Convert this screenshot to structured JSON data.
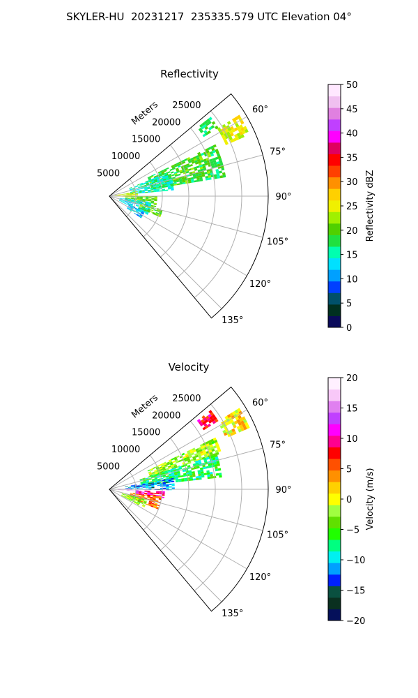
{
  "figure": {
    "title": "SKYLER-HU  20231217  235335.579 UTC Elevation 04°"
  },
  "chart_data": [
    {
      "type": "heatmap",
      "projection": "polar-sector",
      "title": "Reflectivity",
      "radial_label": "Meters",
      "radial_ticks": [
        5000,
        10000,
        15000,
        20000,
        25000
      ],
      "radial_tick_labels": [
        "5000",
        "10000",
        "15000",
        "20000",
        "25000"
      ],
      "radial_range": [
        0,
        30000
      ],
      "angle_range_deg": [
        50,
        140
      ],
      "angle_ticks": [
        60,
        75,
        90,
        105,
        120,
        135
      ],
      "angle_tick_labels": [
        "60°",
        "75°",
        "90°",
        "105°",
        "120°",
        "135°"
      ],
      "grid": true,
      "colorbar": {
        "label": "Reflectivity dBZ",
        "range": [
          0,
          50
        ],
        "ticks": [
          0,
          5,
          10,
          15,
          20,
          25,
          30,
          35,
          40,
          45,
          50
        ],
        "tick_labels": [
          "0",
          "5",
          "10",
          "15",
          "20",
          "25",
          "30",
          "35",
          "40",
          "45",
          "50"
        ]
      },
      "echo_regions": [
        {
          "az": [
            52,
            58
          ],
          "r": [
            21000,
            24000
          ],
          "value": 18
        },
        {
          "az": [
            58,
            66
          ],
          "r": [
            24000,
            28500
          ],
          "value": 25
        },
        {
          "az": [
            64,
            80
          ],
          "r": [
            8000,
            22000
          ],
          "value": 19
        },
        {
          "az": [
            68,
            84
          ],
          "r": [
            4000,
            12000
          ],
          "value": 15
        },
        {
          "az": [
            80,
            92
          ],
          "r": [
            1000,
            5000
          ],
          "value": 24
        },
        {
          "az": [
            90,
            104
          ],
          "r": [
            3000,
            9000
          ],
          "value": 21
        },
        {
          "az": [
            98,
            115
          ],
          "r": [
            2000,
            8000
          ],
          "value": 13
        },
        {
          "az": [
            104,
            112
          ],
          "r": [
            6000,
            10000
          ],
          "value": 20
        },
        {
          "az": [
            114,
            124
          ],
          "r": [
            4000,
            7000
          ],
          "value": 12
        }
      ]
    },
    {
      "type": "heatmap",
      "projection": "polar-sector",
      "title": "Velocity",
      "radial_label": "Meters",
      "radial_ticks": [
        5000,
        10000,
        15000,
        20000,
        25000
      ],
      "radial_tick_labels": [
        "5000",
        "10000",
        "15000",
        "20000",
        "25000"
      ],
      "radial_range": [
        0,
        30000
      ],
      "angle_range_deg": [
        50,
        140
      ],
      "angle_ticks": [
        60,
        75,
        90,
        105,
        120,
        135
      ],
      "angle_tick_labels": [
        "60°",
        "75°",
        "90°",
        "105°",
        "120°",
        "135°"
      ],
      "grid": true,
      "colorbar": {
        "label": "Velocity (m/s)",
        "range": [
          -20,
          20
        ],
        "ticks": [
          -20,
          -15,
          -10,
          -5,
          0,
          5,
          10,
          15,
          20
        ],
        "tick_labels": [
          "−20",
          "−15",
          "−10",
          "−5",
          "0",
          "5",
          "10",
          "15",
          "20"
        ]
      },
      "echo_regions": [
        {
          "az": [
            52,
            58
          ],
          "r": [
            21000,
            24000
          ],
          "value": 8
        },
        {
          "az": [
            58,
            66
          ],
          "r": [
            24000,
            28500
          ],
          "value": 1
        },
        {
          "az": [
            64,
            72
          ],
          "r": [
            8000,
            22000
          ],
          "value": -2
        },
        {
          "az": [
            72,
            84
          ],
          "r": [
            6000,
            21000
          ],
          "value": -7
        },
        {
          "az": [
            80,
            90
          ],
          "r": [
            3000,
            12000
          ],
          "value": -12
        },
        {
          "az": [
            88,
            94
          ],
          "r": [
            500,
            6000
          ],
          "value": 16
        },
        {
          "az": [
            92,
            100
          ],
          "r": [
            5000,
            10000
          ],
          "value": 10
        },
        {
          "az": [
            98,
            112
          ],
          "r": [
            4000,
            10000
          ],
          "value": 5
        },
        {
          "az": [
            104,
            118
          ],
          "r": [
            2500,
            7000
          ],
          "value": -3
        }
      ]
    }
  ],
  "colors": {
    "grid": "#b0b0b0",
    "frame": "#000000",
    "reflectivity_scale": [
      "#0a0a5a",
      "#003020",
      "#00506a",
      "#0040ff",
      "#00a0ff",
      "#00e0ff",
      "#00ffb0",
      "#20e040",
      "#50d000",
      "#a0f000",
      "#f0f000",
      "#ffd000",
      "#ff9000",
      "#ff4000",
      "#ff0000",
      "#e00060",
      "#ff00ff",
      "#c040ff",
      "#e080e0",
      "#f0c0f0",
      "#ffe8ff"
    ],
    "velocity_scale": [
      "#05105a",
      "#0a3020",
      "#0a5040",
      "#0020ff",
      "#00a0ff",
      "#00f0f0",
      "#00ff80",
      "#20ff00",
      "#60e000",
      "#a0ff40",
      "#ffff00",
      "#ffd000",
      "#ff9000",
      "#ff5000",
      "#ff0000",
      "#ff0090",
      "#ff00ff",
      "#c040ff",
      "#e080f0",
      "#f8c8f8",
      "#fff0ff"
    ]
  }
}
